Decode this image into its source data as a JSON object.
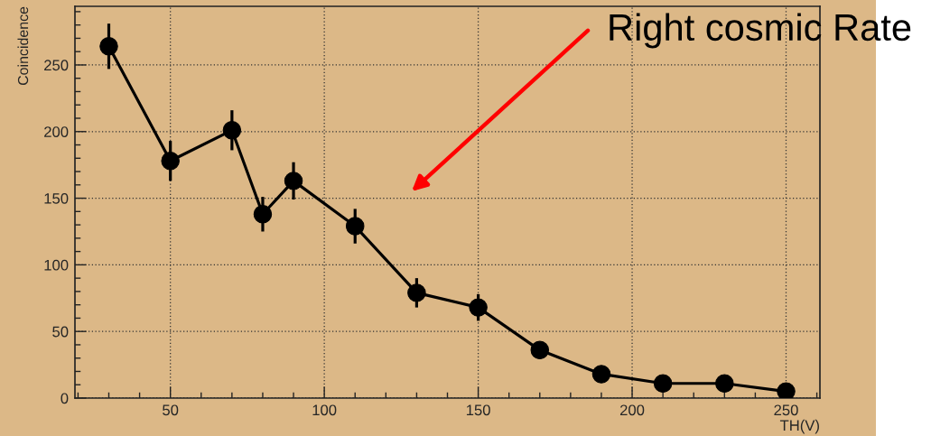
{
  "chart_data": {
    "type": "line",
    "xlabel": "TH(V)",
    "ylabel": "Coincidence",
    "annotations": [
      "Right cosmic Rate"
    ],
    "x": [
      30,
      50,
      70,
      80,
      90,
      110,
      130,
      150,
      170,
      190,
      210,
      230,
      250
    ],
    "series": [
      {
        "color": "#000000",
        "values": [
          264,
          178,
          201,
          138,
          163,
          129,
          79,
          68,
          36,
          18,
          11,
          11,
          5
        ],
        "errors": [
          17,
          15,
          15,
          13,
          14,
          13,
          11,
          10,
          null,
          null,
          null,
          null,
          null
        ]
      }
    ],
    "xlim": [
      19,
      261
    ],
    "ylim": [
      0,
      294
    ],
    "xticks": [
      50,
      100,
      150,
      200,
      250
    ],
    "yticks": [
      0,
      50,
      100,
      150,
      200,
      250
    ],
    "grid": true,
    "marker": "circle",
    "line_style": "solid"
  }
}
